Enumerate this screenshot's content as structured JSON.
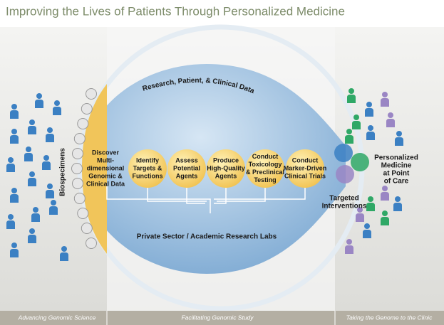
{
  "title": "Improving the Lives of Patients Through Personalized Medicine",
  "data_flow": "Research, Patient, & Clinical Data",
  "specimens": "Biospecimens",
  "steps": [
    {
      "lines": [
        "Discover",
        "Multi-",
        "dimensional",
        "Genomic &",
        "Clinical Data"
      ]
    },
    {
      "lines": [
        "Identify",
        "Targets &",
        "Functions"
      ]
    },
    {
      "lines": [
        "Assess",
        "Potential",
        "Agents"
      ]
    },
    {
      "lines": [
        "Produce",
        "High-Quality",
        "Agents"
      ]
    },
    {
      "lines": [
        "Conduct",
        "Toxicology",
        "& Preclinical",
        "Testing"
      ]
    },
    {
      "lines": [
        "Conduct",
        "Marker-Driven",
        "Clinical Trials"
      ]
    }
  ],
  "labs": "Private Sector / Academic Research Labs",
  "outcomes": {
    "care": [
      "Personalized",
      "Medicine",
      "at Point",
      "of Care"
    ],
    "interventions": [
      "Targeted",
      "Interventions"
    ]
  },
  "footer": [
    "Advancing Genomic Science",
    "Facilitating Genomic Study",
    "Taking the Genome to the Clinic"
  ]
}
